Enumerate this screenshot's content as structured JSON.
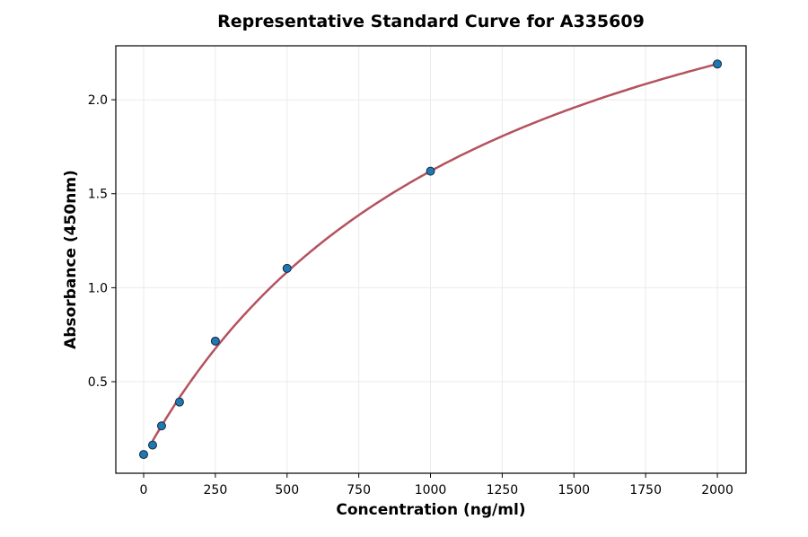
{
  "chart_data": {
    "type": "scatter",
    "title": "Representative Standard Curve for A335609",
    "xlabel": "Concentration (ng/ml)",
    "ylabel": "Absorbance (450nm)",
    "xlim": [
      -97,
      2100
    ],
    "ylim": [
      0.013,
      2.287
    ],
    "xticks": [
      0,
      250,
      500,
      750,
      1000,
      1250,
      1500,
      1750,
      2000
    ],
    "yticks": [
      0.5,
      1.0,
      1.5,
      2.0
    ],
    "xtick_labels": [
      "0",
      "250",
      "500",
      "750",
      "1000",
      "1250",
      "1500",
      "1750",
      "2000"
    ],
    "ytick_labels": [
      "0.5",
      "1.0",
      "1.5",
      "2.0"
    ],
    "grid": true,
    "points": {
      "x": [
        0,
        31.25,
        62.5,
        125,
        250,
        500,
        1000,
        2000
      ],
      "y": [
        0.113,
        0.163,
        0.265,
        0.392,
        0.716,
        1.103,
        1.62,
        2.19
      ]
    },
    "fit_curve": {
      "x_range": [
        31.25,
        2000
      ]
    },
    "colors": {
      "points": "#1f77b4",
      "curve": "#b5525f",
      "grid": "#ebebeb"
    }
  }
}
